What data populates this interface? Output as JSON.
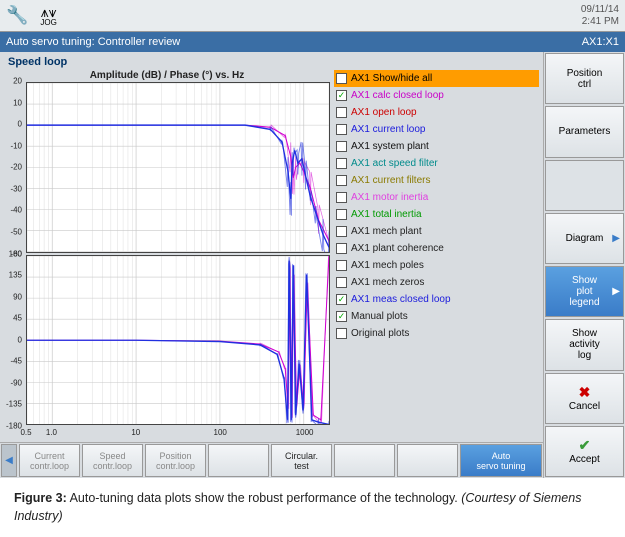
{
  "topbar": {
    "date": "09/11/14",
    "time": "2:41 PM",
    "jog": "JOG"
  },
  "titlebar": {
    "title": "Auto servo tuning: Controller review",
    "axis": "AX1:X1"
  },
  "plot": {
    "header": "Speed loop",
    "title": "Amplitude (dB) / Phase (°) vs. Hz",
    "amp": {
      "ylim": [
        -60,
        20
      ],
      "yticks": [
        20,
        10,
        0,
        -10,
        -20,
        -30,
        -40,
        -50,
        -60
      ],
      "grid_color": "#c9c9c9",
      "bg": "#ffffff",
      "series": [
        {
          "color": "#d000d0",
          "width": 1,
          "pts": [
            [
              0.5,
              0
            ],
            [
              5,
              0
            ],
            [
              50,
              0
            ],
            [
              200,
              0
            ],
            [
              400,
              -1
            ],
            [
              600,
              -5
            ],
            [
              700,
              -15
            ],
            [
              750,
              -25
            ],
            [
              800,
              -20
            ],
            [
              900,
              -18
            ],
            [
              1000,
              -22
            ],
            [
              1200,
              -30
            ],
            [
              1500,
              -45
            ],
            [
              2000,
              -55
            ]
          ]
        },
        {
          "color": "#2030e0",
          "width": 1.3,
          "pts": [
            [
              0.5,
              0
            ],
            [
              5,
              0
            ],
            [
              50,
              0
            ],
            [
              200,
              0
            ],
            [
              400,
              -2
            ],
            [
              550,
              -8
            ],
            [
              650,
              -22
            ],
            [
              700,
              -35
            ],
            [
              730,
              -18
            ],
            [
              780,
              -12
            ],
            [
              850,
              -18
            ],
            [
              950,
              -16
            ],
            [
              1050,
              -24
            ],
            [
              1200,
              -34
            ],
            [
              1400,
              -42
            ],
            [
              1700,
              -52
            ],
            [
              2000,
              -58
            ]
          ]
        }
      ]
    },
    "phase": {
      "ylim": [
        -180,
        180
      ],
      "yticks": [
        180,
        135,
        90,
        45,
        0,
        -45,
        -90,
        -135,
        -180
      ],
      "series": [
        {
          "color": "#d000d0",
          "width": 1,
          "pts": [
            [
              0.5,
              0
            ],
            [
              10,
              0
            ],
            [
              100,
              -2
            ],
            [
              300,
              -8
            ],
            [
              500,
              -25
            ],
            [
              600,
              -60
            ],
            [
              650,
              -140
            ],
            [
              680,
              160
            ],
            [
              720,
              -160
            ],
            [
              760,
              140
            ],
            [
              820,
              -140
            ],
            [
              900,
              -60
            ],
            [
              1000,
              -140
            ],
            [
              1100,
              120
            ],
            [
              1300,
              -160
            ],
            [
              1600,
              -170
            ],
            [
              2000,
              180
            ]
          ]
        },
        {
          "color": "#2030e0",
          "width": 1.3,
          "pts": [
            [
              0.5,
              0
            ],
            [
              10,
              0
            ],
            [
              100,
              -3
            ],
            [
              300,
              -10
            ],
            [
              480,
              -30
            ],
            [
              580,
              -80
            ],
            [
              640,
              -170
            ],
            [
              670,
              170
            ],
            [
              710,
              -170
            ],
            [
              750,
              160
            ],
            [
              800,
              -160
            ],
            [
              880,
              -50
            ],
            [
              980,
              -150
            ],
            [
              1080,
              140
            ],
            [
              1250,
              -170
            ],
            [
              1500,
              -175
            ],
            [
              2000,
              -180
            ]
          ]
        }
      ]
    },
    "xlim": [
      0.5,
      2000
    ],
    "xticks": [
      0.5,
      1.0,
      10,
      100,
      1000
    ],
    "xticklabels": [
      "0.5",
      "1.0",
      "10",
      "100",
      "1000"
    ]
  },
  "legend": [
    {
      "label": "AX1 Show/hide all",
      "color": "#000000",
      "checked": false,
      "selected": true
    },
    {
      "label": "AX1 calc closed loop",
      "color": "#c800c8",
      "checked": true
    },
    {
      "label": "AX1 open loop",
      "color": "#cc0000",
      "checked": false
    },
    {
      "label": "AX1 current loop",
      "color": "#1a1adc",
      "checked": false
    },
    {
      "label": "AX1 system plant",
      "color": "#111111",
      "checked": false
    },
    {
      "label": "AX1 act speed filter",
      "color": "#008b8b",
      "checked": false
    },
    {
      "label": "AX1 current filters",
      "color": "#8a7a00",
      "checked": false
    },
    {
      "label": "AX1 motor inertia",
      "color": "#e040e0",
      "checked": false
    },
    {
      "label": "AX1 total inertia",
      "color": "#009a00",
      "checked": false
    },
    {
      "label": "AX1 mech plant",
      "color": "#222222",
      "checked": false
    },
    {
      "label": "AX1 plant coherence",
      "color": "#222222",
      "checked": false
    },
    {
      "label": "AX1 mech poles",
      "color": "#222222",
      "checked": false
    },
    {
      "label": "AX1 mech zeros",
      "color": "#222222",
      "checked": false
    },
    {
      "label": "AX1 meas closed loop",
      "color": "#1a1adc",
      "checked": true
    },
    {
      "label": "Manual plots",
      "color": "#222222",
      "checked": true
    },
    {
      "label": "Original plots",
      "color": "#222222",
      "checked": false
    }
  ],
  "sidebar": [
    {
      "label": "Position ctrl",
      "kind": "plain"
    },
    {
      "label": "Parameters",
      "kind": "plain"
    },
    {
      "label": "",
      "kind": "empty"
    },
    {
      "label": "Diagram",
      "kind": "plain",
      "arrow": true
    },
    {
      "label": "Show plot legend",
      "kind": "blue",
      "arrow": true
    },
    {
      "label": "Show activity log",
      "kind": "plain"
    },
    {
      "label": "Cancel",
      "kind": "plain",
      "icon": "x"
    },
    {
      "label": "Accept",
      "kind": "plain",
      "icon": "ok"
    }
  ],
  "bottombar": {
    "buttons": [
      {
        "label": "Current contr.loop",
        "state": "dim"
      },
      {
        "label": "Speed contr.loop",
        "state": "dim"
      },
      {
        "label": "Position contr.loop",
        "state": "dim"
      },
      {
        "label": "",
        "state": "dim"
      },
      {
        "label": "Circular. test",
        "state": "dark"
      },
      {
        "label": "",
        "state": "dim"
      },
      {
        "label": "",
        "state": "dim"
      }
    ],
    "active": "Auto servo tuning"
  },
  "caption": {
    "fig": "Figure 3:",
    "text": " Auto-tuning data plots show the robust performance of the technology. ",
    "src": "(Courtesy of Siemens Industry)"
  }
}
